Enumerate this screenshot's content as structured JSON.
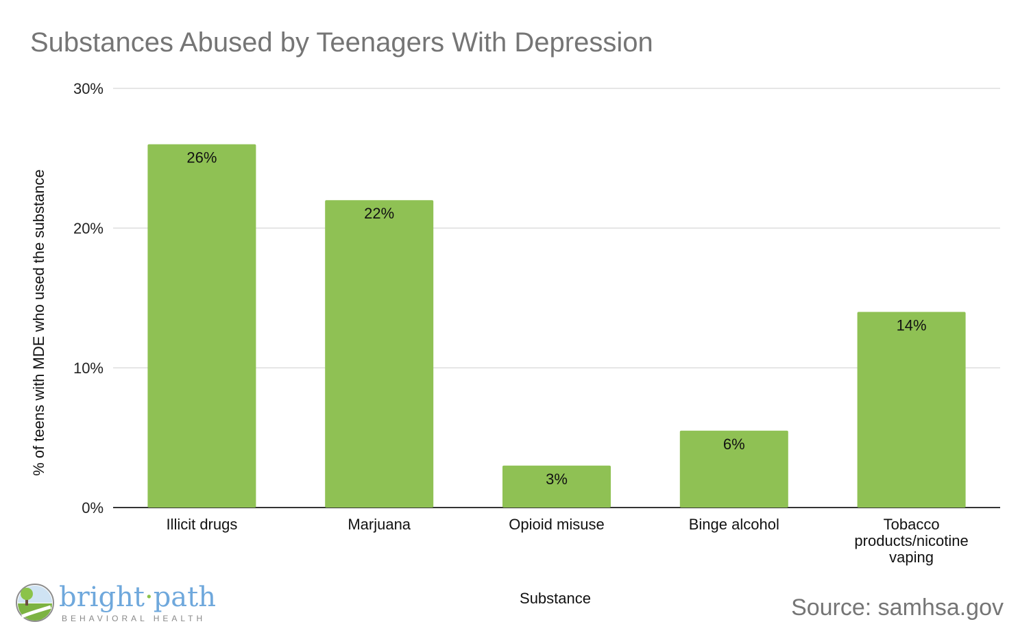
{
  "chart_data": {
    "type": "bar",
    "title": "Substances Abused by Teenagers With Depression",
    "xlabel": "Substance",
    "ylabel": "% of teens with MDE who used the substance",
    "categories": [
      [
        "Illicit drugs"
      ],
      [
        "Marjuana"
      ],
      [
        "Opioid misuse"
      ],
      [
        "Binge alcohol"
      ],
      [
        "Tobacco",
        "products/nicotine",
        "vaping"
      ]
    ],
    "values": [
      26,
      22,
      3,
      5.5,
      14
    ],
    "data_labels": [
      "26%",
      "22%",
      "3%",
      "6%",
      "14%"
    ],
    "ylim": [
      0,
      30
    ],
    "yticks": [
      0,
      10,
      20,
      30
    ],
    "ytick_labels": [
      "0%",
      "10%",
      "20%",
      "30%"
    ],
    "bar_color": "#8fc154",
    "grid": true
  },
  "source": "Source: samhsa.gov",
  "logo": {
    "word1": "bright",
    "separator": "·",
    "word2": "path",
    "tagline": "BEHAVIORAL HEALTH"
  }
}
